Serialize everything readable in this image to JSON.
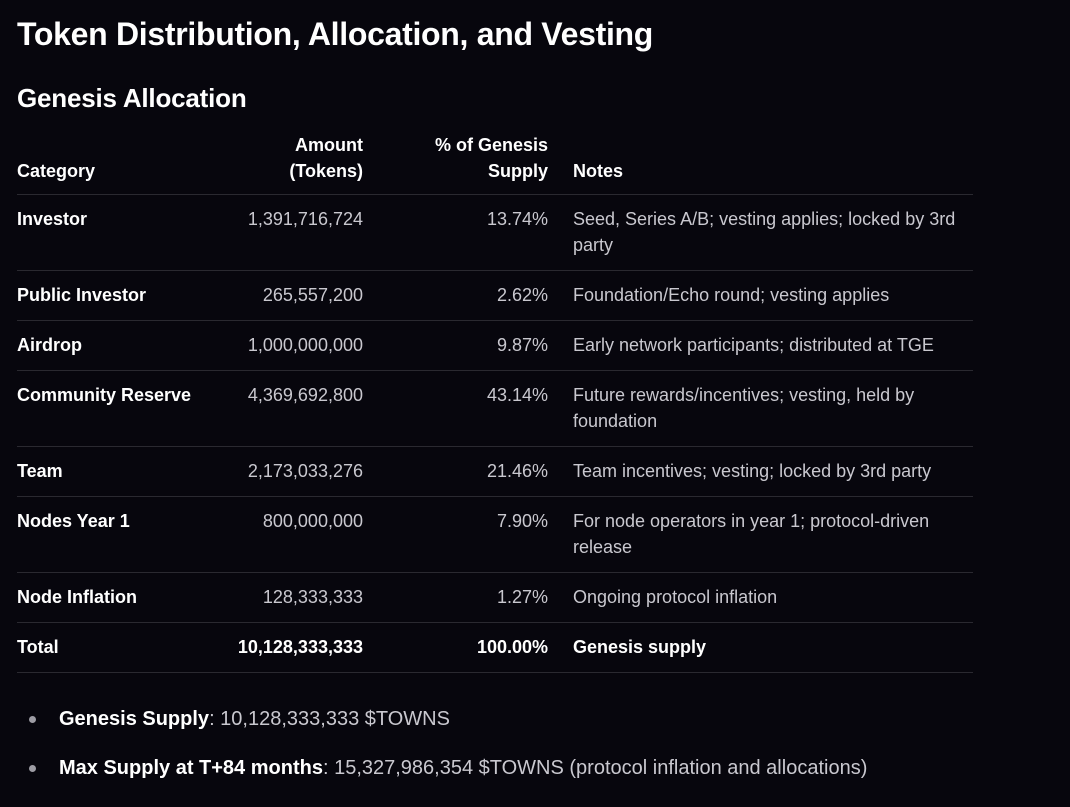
{
  "title": "Token Distribution, Allocation, and Vesting",
  "section_title": "Genesis Allocation",
  "table": {
    "headers": {
      "category": "Category",
      "amount_line1": "Amount",
      "amount_line2": "(Tokens)",
      "percent_line1": "% of Genesis",
      "percent_line2": "Supply",
      "notes": "Notes"
    },
    "rows": [
      {
        "category": "Investor",
        "amount": "1,391,716,724",
        "percent": "13.74%",
        "notes": "Seed, Series A/B; vesting applies; locked by 3rd party"
      },
      {
        "category": "Public Investor",
        "amount": "265,557,200",
        "percent": "2.62%",
        "notes": "Foundation/Echo round; vesting applies"
      },
      {
        "category": "Airdrop",
        "amount": "1,000,000,000",
        "percent": "9.87%",
        "notes": "Early network participants; distributed at TGE"
      },
      {
        "category": "Community Reserve",
        "amount": "4,369,692,800",
        "percent": "43.14%",
        "notes": "Future rewards/incentives; vesting, held by foundation"
      },
      {
        "category": "Team",
        "amount": "2,173,033,276",
        "percent": "21.46%",
        "notes": "Team incentives; vesting; locked by 3rd party"
      },
      {
        "category": "Nodes Year 1",
        "amount": "800,000,000",
        "percent": "7.90%",
        "notes": "For node operators in year 1; protocol-driven release"
      },
      {
        "category": "Node Inflation",
        "amount": "128,333,333",
        "percent": "1.27%",
        "notes": "Ongoing protocol inflation"
      }
    ],
    "total": {
      "category": "Total",
      "amount": "10,128,333,333",
      "percent": "100.00%",
      "notes": "Genesis supply"
    }
  },
  "bullets": [
    {
      "label": "Genesis Supply",
      "text": ": 10,128,333,333 $TOWNS"
    },
    {
      "label": "Max Supply at T+84 months",
      "text": ": 15,327,986,354 $TOWNS (protocol inflation and allocations)"
    }
  ]
}
